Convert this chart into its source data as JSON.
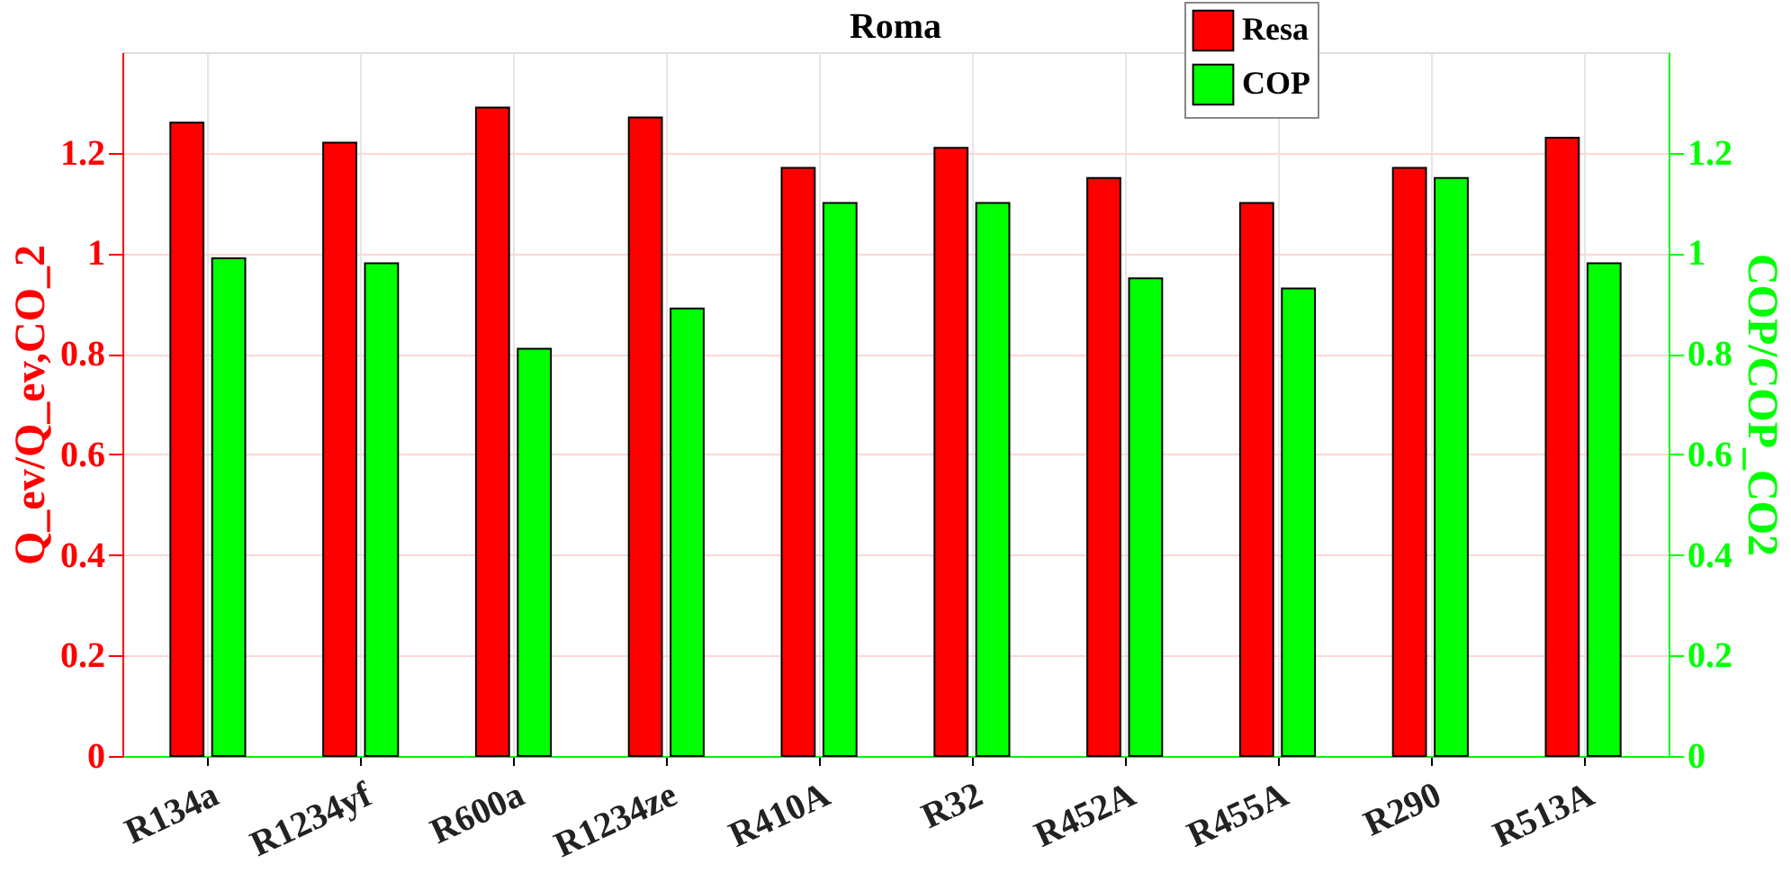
{
  "chart_data": {
    "type": "bar",
    "title": "Roma",
    "categories": [
      "R134a",
      "R1234yf",
      "R600a",
      "R1234ze",
      "R410A",
      "R32",
      "R452A",
      "R455A",
      "R290",
      "R513A"
    ],
    "series": [
      {
        "name": "Resa",
        "color": "#ff0000",
        "values": [
          1.26,
          1.22,
          1.29,
          1.27,
          1.17,
          1.21,
          1.15,
          1.1,
          1.17,
          1.23
        ]
      },
      {
        "name": "COP",
        "color": "#00ff00",
        "axis": "y2",
        "values": [
          0.99,
          0.98,
          0.81,
          0.89,
          1.1,
          1.1,
          0.95,
          0.93,
          1.15,
          0.98
        ]
      }
    ],
    "ylabel": "Q_ev/Q_ev,CO_2",
    "y2label": "COP/COP_CO2",
    "ylim": [
      0,
      1.4
    ],
    "yticks": [
      0,
      0.2,
      0.4,
      0.6,
      0.8,
      1,
      1.2
    ],
    "y2lim": [
      0,
      1.4
    ],
    "y2ticks": [
      0,
      0.2,
      0.4,
      0.6,
      0.8,
      1,
      1.2
    ],
    "grid": true,
    "legend": "top right"
  }
}
